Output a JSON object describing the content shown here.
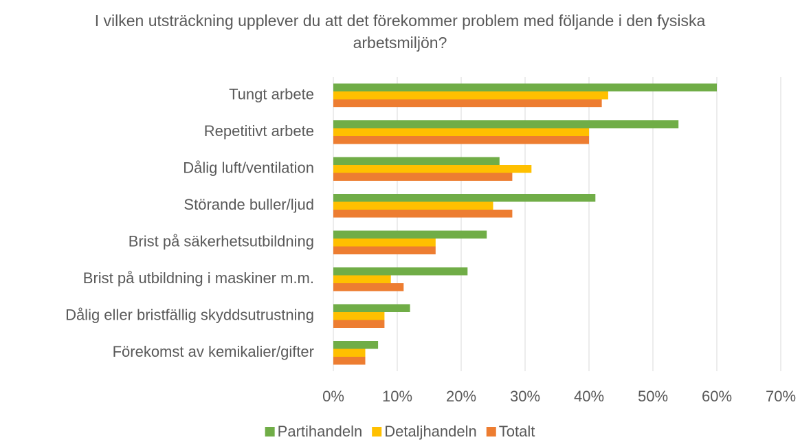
{
  "chart_data": {
    "type": "barh",
    "title": "I vilken utsträckning upplever du att det förekommer problem med följande i den fysiska arbetsmiljön?",
    "categories": [
      "Tungt arbete",
      "Repetitivt arbete",
      "Dålig luft/ventilation",
      "Störande buller/ljud",
      "Brist på säkerhetsutbildning",
      "Brist på utbildning i maskiner m.m.",
      "Dålig eller bristfällig skyddsutrustning",
      "Förekomst av kemikalier/gifter"
    ],
    "series": [
      {
        "name": "Partihandeln",
        "color": "#70ad47",
        "values": [
          60,
          54,
          26,
          41,
          24,
          21,
          12,
          7
        ]
      },
      {
        "name": "Detaljhandeln",
        "color": "#ffc000",
        "values": [
          43,
          40,
          31,
          25,
          16,
          9,
          8,
          5
        ]
      },
      {
        "name": "Totalt",
        "color": "#ed7d31",
        "values": [
          42,
          40,
          28,
          28,
          16,
          11,
          8,
          5
        ]
      }
    ],
    "xlim": [
      0,
      70
    ],
    "xticks": [
      {
        "value": 0,
        "label": "0%"
      },
      {
        "value": 10,
        "label": "10%"
      },
      {
        "value": 20,
        "label": "20%"
      },
      {
        "value": 30,
        "label": "30%"
      },
      {
        "value": 40,
        "label": "40%"
      },
      {
        "value": 50,
        "label": "50%"
      },
      {
        "value": 60,
        "label": "60%"
      },
      {
        "value": 70,
        "label": "70%"
      }
    ],
    "grid": true,
    "legend": "bottom"
  }
}
